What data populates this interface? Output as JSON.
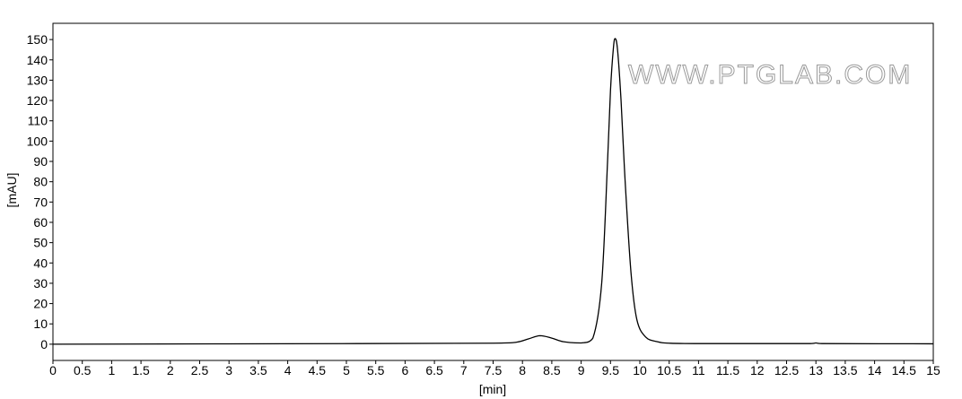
{
  "chart_data": {
    "type": "line",
    "title": "",
    "xlabel": "[min]",
    "ylabel": "[mAU]",
    "xlim": [
      0,
      15
    ],
    "ylim": [
      -8,
      158
    ],
    "x_ticks": [
      "0",
      "0.5",
      "1",
      "1.5",
      "2",
      "2.5",
      "3",
      "3.5",
      "4",
      "4.5",
      "5",
      "5.5",
      "6",
      "6.5",
      "7",
      "7.5",
      "8",
      "8.5",
      "9",
      "9.5",
      "10",
      "10.5",
      "11",
      "11.5",
      "12",
      "12.5",
      "13",
      "13.5",
      "14",
      "14.5",
      "15"
    ],
    "y_ticks": [
      "0",
      "10",
      "20",
      "30",
      "40",
      "50",
      "60",
      "70",
      "80",
      "90",
      "100",
      "110",
      "120",
      "130",
      "140",
      "150"
    ],
    "grid": false,
    "series": [
      {
        "peaks": [
          {
            "retention_time": 8.3,
            "height": 4.2
          },
          {
            "retention_time": 9.58,
            "height": 150.5
          }
        ],
        "x": [
          0,
          5.2,
          7.5,
          7.9,
          8.1,
          8.3,
          8.5,
          8.7,
          9.0,
          9.2,
          9.35,
          9.45,
          9.5,
          9.55,
          9.58,
          9.62,
          9.68,
          9.75,
          9.85,
          9.95,
          10.1,
          10.3,
          10.5,
          11,
          12.9,
          13.0,
          13.1,
          15
        ],
        "y": [
          0,
          0.3,
          0.5,
          1.0,
          2.6,
          4.2,
          3.0,
          1.2,
          0.6,
          3.0,
          30,
          90,
          125,
          146,
          150.5,
          145,
          120,
          80,
          35,
          12,
          3.5,
          1.2,
          0.5,
          0.3,
          0.3,
          0.6,
          0.3,
          0.2
        ],
        "color": "#000000"
      }
    ],
    "watermark": "WWW.PTGLAB.COM"
  }
}
